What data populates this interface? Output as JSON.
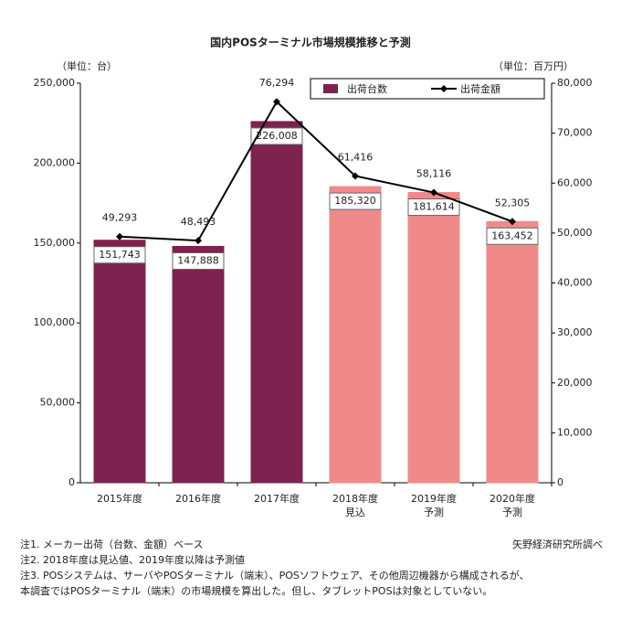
{
  "chart_data": {
    "type": "bar-line",
    "title": "国内POSターミナル市場規模推移と予測",
    "y_unit_label": "（単位：台）",
    "y2_unit_label": "（単位：百万円）",
    "categories": [
      [
        "2015年度"
      ],
      [
        "2016年度"
      ],
      [
        "2017年度"
      ],
      [
        "2018年度",
        "見込"
      ],
      [
        "2019年度",
        "予測"
      ],
      [
        "2020年度",
        "予測"
      ]
    ],
    "series": [
      {
        "name": "出荷台数",
        "type": "bar",
        "color": "#7e2350",
        "colors": [
          "#7e2350",
          "#7e2350",
          "#7e2350",
          "#f08a8a",
          "#f08a8a",
          "#f08a8a"
        ],
        "values": [
          151743,
          147888,
          226008,
          185320,
          181614,
          163452
        ],
        "value_labels": [
          "151,743",
          "147,888",
          "226,008",
          "185,320",
          "181,614",
          "163,452"
        ]
      },
      {
        "name": "出荷金額",
        "type": "line",
        "axis": "y2",
        "color": "#000000",
        "values": [
          49293,
          48493,
          76294,
          61416,
          58116,
          52305
        ],
        "value_labels": [
          "49,293",
          "48,493",
          "76,294",
          "61,416",
          "58,116",
          "52,305"
        ]
      }
    ],
    "ylim": [
      0,
      250000
    ],
    "yticks": [
      0,
      {
        "value": 50000,
        "label": "50,000"
      },
      {
        "value": 100000,
        "label": "100,000"
      },
      {
        "value": 150000,
        "label": "150,000"
      },
      {
        "value": 200000,
        "label": "200,000"
      },
      {
        "value": 250000,
        "label": "250,000"
      }
    ],
    "y2lim": [
      0,
      80000
    ],
    "y2ticks": [
      0,
      {
        "value": 10000,
        "label": "10,000"
      },
      {
        "value": 20000,
        "label": "20,000"
      },
      {
        "value": 30000,
        "label": "30,000"
      },
      {
        "value": 40000,
        "label": "40,000"
      },
      {
        "value": 50000,
        "label": "50,000"
      },
      {
        "value": 60000,
        "label": "60,000"
      },
      {
        "value": 70000,
        "label": "70,000"
      },
      {
        "value": 80000,
        "label": "80,000"
      }
    ],
    "grid": false,
    "legend": "top-right",
    "notes": [
      "注1. メーカー出荷（台数、金額）ベース",
      "注2. 2018年度は見込値、2019年度以降は予測値",
      "注3. POSシステムは、サーバやPOSターミナル（端末）、POSソフトウェア、その他周辺機器から構成されるが、",
      "本調査ではPOSターミナル（端末）の市場規模を算出した。但し、タブレットPOSは対象としていない。"
    ],
    "source": "矢野経済研究所調べ"
  }
}
